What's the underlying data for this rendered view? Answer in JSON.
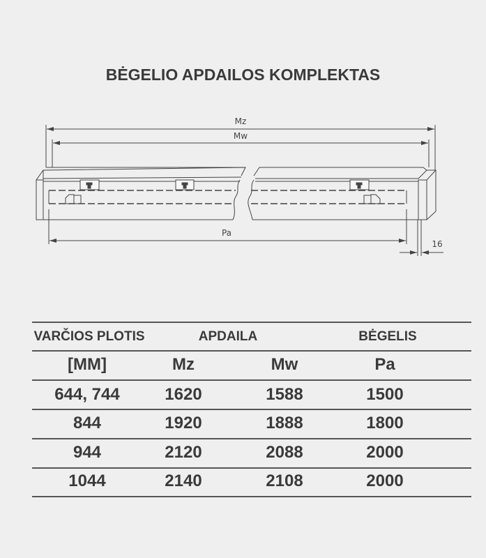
{
  "title": "BĖGELIO APDAILOS KOMPLEKTAS",
  "drawing": {
    "dim_labels": {
      "mz": "Mz",
      "mw": "Mw",
      "pa": "Pa",
      "thickness": "16"
    },
    "line_color": "#444444"
  },
  "table": {
    "group_headers": [
      "VARČIOS PLOTIS",
      "APDAILA",
      "BĖGELIS"
    ],
    "column_headers": [
      "[MM]",
      "Mz",
      "Mw",
      "Pa"
    ],
    "rows": [
      [
        "644, 744",
        "1620",
        "1588",
        "1500"
      ],
      [
        "844",
        "1920",
        "1888",
        "1800"
      ],
      [
        "944",
        "2120",
        "2088",
        "2000"
      ],
      [
        "1044",
        "2140",
        "2108",
        "2000"
      ]
    ]
  }
}
